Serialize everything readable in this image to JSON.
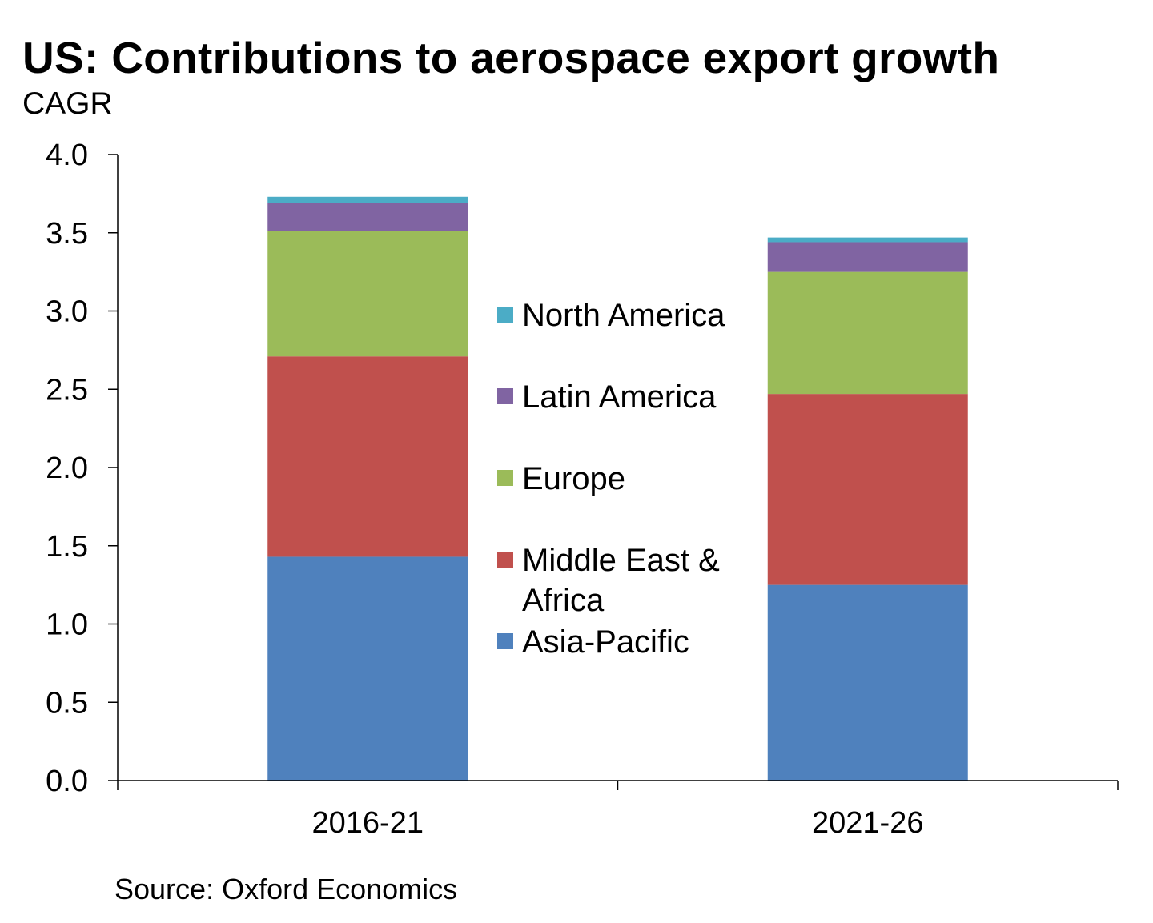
{
  "chart_data": {
    "type": "bar",
    "stacked": true,
    "title": "US: Contributions to aerospace export growth",
    "subtitle": "CAGR",
    "source": "Source: Oxford Economics",
    "categories": [
      "2016-21",
      "2021-26"
    ],
    "ylim": [
      0,
      4
    ],
    "yticks": [
      "0.0",
      "0.5",
      "1.0",
      "1.5",
      "2.0",
      "2.5",
      "3.0",
      "3.5",
      "4.0"
    ],
    "grid": false,
    "legend_placement": "center",
    "series": [
      {
        "name": "Asia-Pacific",
        "values": [
          1.43,
          1.25
        ],
        "color": "#4f81bd"
      },
      {
        "name": "Middle East & Africa",
        "values": [
          1.28,
          1.22
        ],
        "color": "#c0504d"
      },
      {
        "name": "Europe",
        "values": [
          0.8,
          0.78
        ],
        "color": "#9bbb59"
      },
      {
        "name": "Latin America",
        "values": [
          0.18,
          0.19
        ],
        "color": "#8064a2"
      },
      {
        "name": "North America",
        "values": [
          0.04,
          0.03
        ],
        "color": "#4bacc6"
      }
    ]
  }
}
